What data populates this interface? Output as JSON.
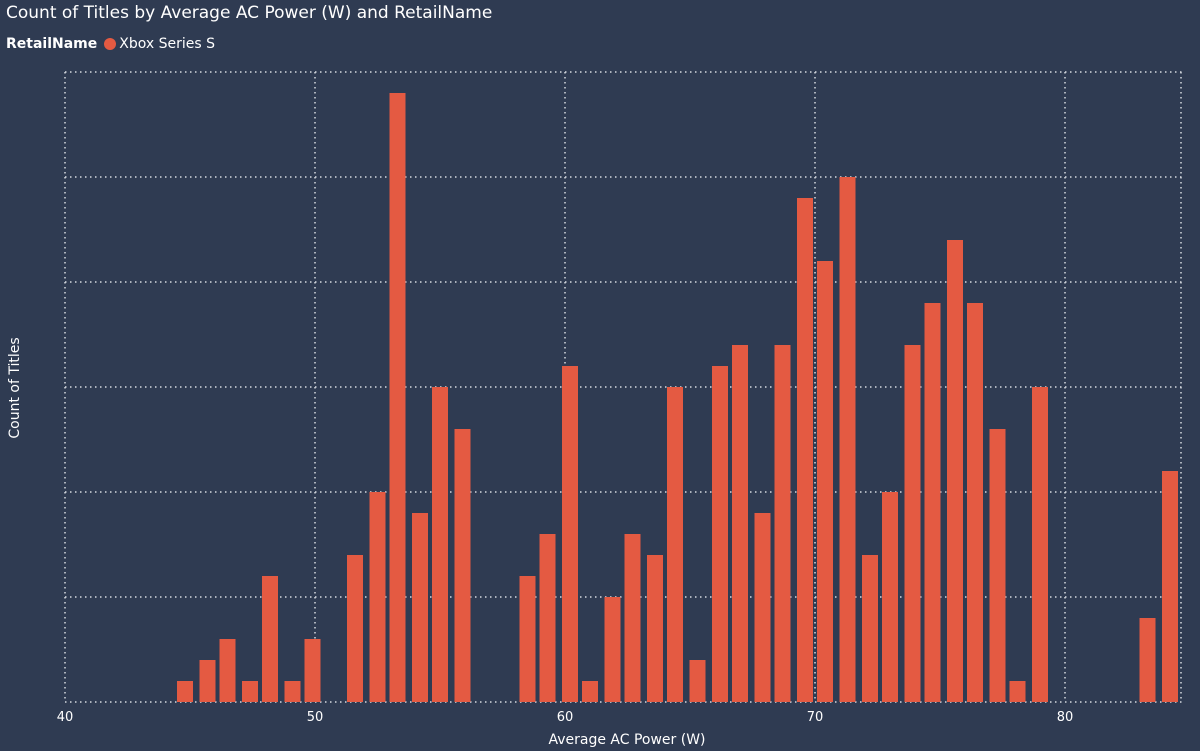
{
  "chart_data": {
    "type": "bar",
    "title": "Count of Titles by Average AC Power (W) and RetailName",
    "legend": {
      "title": "RetailName",
      "placement": "top-left",
      "entries": [
        {
          "name": "Xbox Series S",
          "color": "#e45a42"
        }
      ]
    },
    "xlabel": "Average AC Power (W)",
    "ylabel": "Count of Titles",
    "x_ticks": [
      40,
      50,
      60,
      70,
      80
    ],
    "xlim": [
      40,
      84.8
    ],
    "ylim": [
      0,
      30
    ],
    "y_ticks_labeled": false,
    "grid": true,
    "series": [
      {
        "name": "Xbox Series S",
        "color": "#e45a42",
        "points": [
          {
            "x": 44.8,
            "y": 1
          },
          {
            "x": 45.7,
            "y": 2
          },
          {
            "x": 46.5,
            "y": 3
          },
          {
            "x": 47.4,
            "y": 1
          },
          {
            "x": 48.2,
            "y": 6
          },
          {
            "x": 49.1,
            "y": 1
          },
          {
            "x": 49.9,
            "y": 3
          },
          {
            "x": 51.6,
            "y": 7
          },
          {
            "x": 52.5,
            "y": 10
          },
          {
            "x": 53.3,
            "y": 29
          },
          {
            "x": 54.2,
            "y": 9
          },
          {
            "x": 55.0,
            "y": 15
          },
          {
            "x": 55.9,
            "y": 13
          },
          {
            "x": 58.5,
            "y": 6
          },
          {
            "x": 59.3,
            "y": 8
          },
          {
            "x": 60.2,
            "y": 16
          },
          {
            "x": 61.0,
            "y": 1
          },
          {
            "x": 61.9,
            "y": 5
          },
          {
            "x": 62.7,
            "y": 8
          },
          {
            "x": 63.6,
            "y": 7
          },
          {
            "x": 64.4,
            "y": 15
          },
          {
            "x": 65.3,
            "y": 2
          },
          {
            "x": 66.2,
            "y": 16
          },
          {
            "x": 67.0,
            "y": 17
          },
          {
            "x": 67.9,
            "y": 9
          },
          {
            "x": 68.7,
            "y": 17
          },
          {
            "x": 69.6,
            "y": 24
          },
          {
            "x": 70.4,
            "y": 21
          },
          {
            "x": 71.3,
            "y": 25
          },
          {
            "x": 72.2,
            "y": 7
          },
          {
            "x": 73.0,
            "y": 10
          },
          {
            "x": 73.9,
            "y": 17
          },
          {
            "x": 74.7,
            "y": 19
          },
          {
            "x": 75.6,
            "y": 22
          },
          {
            "x": 76.4,
            "y": 19
          },
          {
            "x": 77.3,
            "y": 13
          },
          {
            "x": 78.1,
            "y": 1
          },
          {
            "x": 79.0,
            "y": 15
          },
          {
            "x": 83.3,
            "y": 4
          },
          {
            "x": 84.2,
            "y": 11
          }
        ]
      }
    ]
  }
}
